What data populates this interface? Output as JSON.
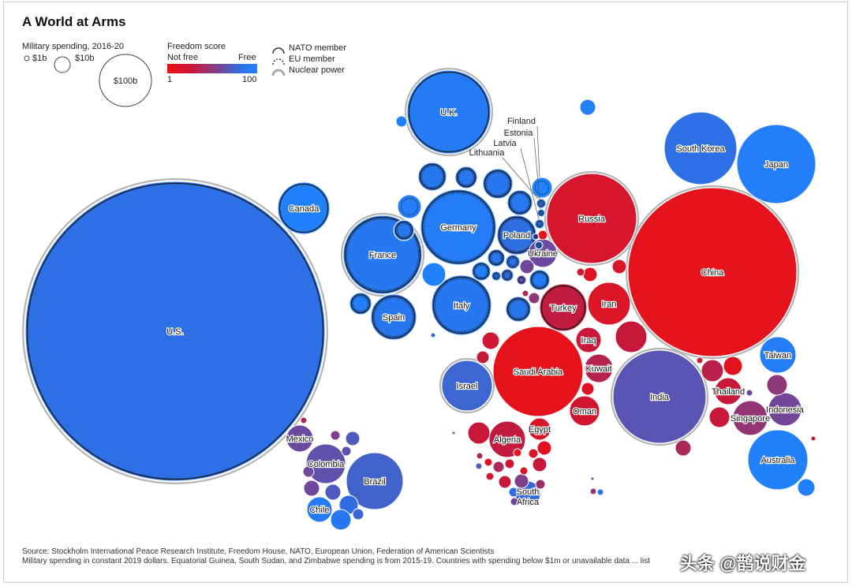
{
  "title": "A World at Arms",
  "legend": {
    "size_title": "Military spending, 2016-20",
    "size_items": [
      "$1b",
      "$10b",
      "$100b"
    ],
    "freedom_title": "Freedom score",
    "not_free": "Not free",
    "free": "Free",
    "scale_min": "1",
    "scale_max": "100",
    "membership": [
      "NATO member",
      "EU member",
      "Nuclear power"
    ]
  },
  "source_line1": "Source: Stockholm International Peace Research Institute, Freedom House, NATO, European Union, Federation of American Scientists",
  "source_line2": "Military spending in constant 2019 dollars. Equatorial Guinea, South Sudan, and Zimbabwe spending is from 2015-19. Countries with spending below $1m or unavailable data ... list",
  "watermark": "头条 @鹊说财金",
  "colors": {
    "free": "#1f83ff",
    "not_free": "#ee1111",
    "mid": "#7f3f8a"
  },
  "chart_data": {
    "type": "bubble",
    "size_measure": "Military spending, 2016-20 (USD)",
    "color_measure": "Freedom score (1-100)",
    "countries": [
      {
        "name": "U.S.",
        "freedom": 83,
        "nato": true,
        "nuclear": true
      },
      {
        "name": "China",
        "freedom": 9,
        "nuclear": true
      },
      {
        "name": "Russia",
        "freedom": 20,
        "nuclear": true
      },
      {
        "name": "U.K.",
        "freedom": 93,
        "nato": true,
        "nuclear": true
      },
      {
        "name": "Germany",
        "freedom": 94,
        "nato": true,
        "eu": true
      },
      {
        "name": "France",
        "freedom": 90,
        "nato": true,
        "eu": true,
        "nuclear": true
      },
      {
        "name": "India",
        "freedom": 67,
        "nuclear": true
      },
      {
        "name": "Saudi Arabia",
        "freedom": 7
      },
      {
        "name": "Japan",
        "freedom": 96
      },
      {
        "name": "South Korea",
        "freedom": 83
      },
      {
        "name": "Italy",
        "freedom": 90,
        "nato": true,
        "eu": true
      },
      {
        "name": "Australia",
        "freedom": 97
      },
      {
        "name": "Canada",
        "freedom": 98,
        "nato": true
      },
      {
        "name": "Brazil",
        "freedom": 74
      },
      {
        "name": "Israel",
        "freedom": 76,
        "nuclear": true
      },
      {
        "name": "Spain",
        "freedom": 90,
        "nato": true,
        "eu": true
      },
      {
        "name": "Turkey",
        "freedom": 32,
        "nato": true
      },
      {
        "name": "Iran",
        "freedom": 16
      },
      {
        "name": "Poland",
        "freedom": 82,
        "nato": true,
        "eu": true
      },
      {
        "name": "Taiwan",
        "freedom": 94
      },
      {
        "name": "Colombia",
        "freedom": 65
      },
      {
        "name": "Algeria",
        "freedom": 32
      },
      {
        "name": "Singapore",
        "freedom": 48
      },
      {
        "name": "Indonesia",
        "freedom": 59
      },
      {
        "name": "Oman",
        "freedom": 23
      },
      {
        "name": "Kuwait",
        "freedom": 37
      },
      {
        "name": "Thailand",
        "freedom": 30
      },
      {
        "name": "Iraq",
        "freedom": 29
      },
      {
        "name": "Mexico",
        "freedom": 61
      },
      {
        "name": "Ukraine",
        "freedom": 61
      },
      {
        "name": "Egypt",
        "freedom": 18
      },
      {
        "name": "Chile",
        "freedom": 93
      },
      {
        "name": "South Africa",
        "freedom": 79
      },
      {
        "name": "Finland",
        "freedom": 100,
        "eu": true
      },
      {
        "name": "Estonia",
        "freedom": 94,
        "nato": true,
        "eu": true
      },
      {
        "name": "Latvia",
        "freedom": 89,
        "nato": true,
        "eu": true
      },
      {
        "name": "Lithuania",
        "freedom": 90,
        "nato": true,
        "eu": true
      }
    ]
  }
}
